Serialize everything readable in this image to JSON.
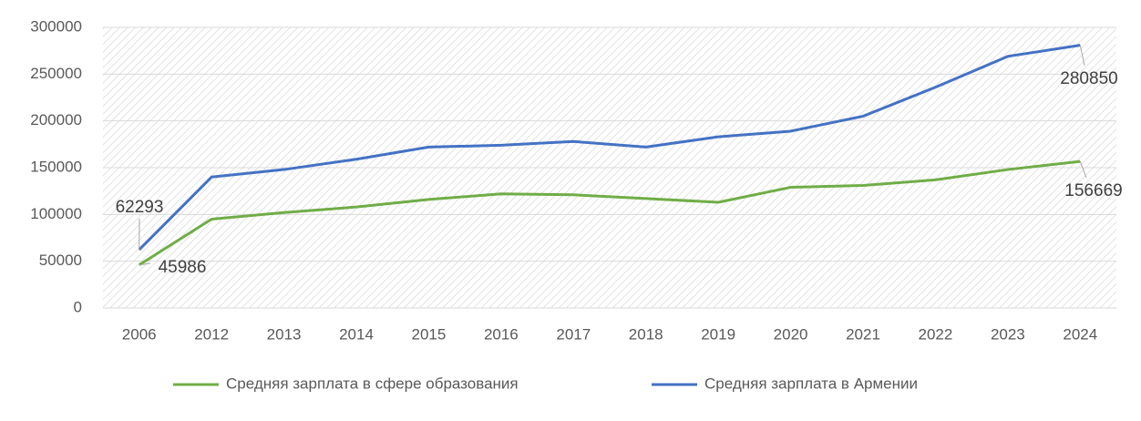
{
  "chart_data": {
    "type": "line",
    "categories": [
      "2006",
      "2012",
      "2013",
      "2014",
      "2015",
      "2016",
      "2017",
      "2018",
      "2019",
      "2020",
      "2021",
      "2022",
      "2023",
      "2024"
    ],
    "series": [
      {
        "name": "Средняя зарплата в сфере образования",
        "color": "#70ad47",
        "values": [
          45986,
          95000,
          102000,
          108000,
          116000,
          122000,
          121000,
          117000,
          113000,
          129000,
          131000,
          137000,
          148000,
          156669
        ]
      },
      {
        "name": "Средняя зарплата в Армении",
        "color": "#4472c4",
        "values": [
          62293,
          140000,
          148000,
          159000,
          172000,
          174000,
          178000,
          172000,
          183000,
          189000,
          205000,
          236000,
          269000,
          280850
        ]
      }
    ],
    "ylim": [
      0,
      300000
    ],
    "yticks": [
      0,
      50000,
      100000,
      150000,
      200000,
      250000,
      300000
    ],
    "grid": true
  }
}
